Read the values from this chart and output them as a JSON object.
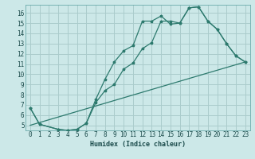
{
  "xlabel": "Humidex (Indice chaleur)",
  "background_color": "#cce8e8",
  "grid_color": "#aacccc",
  "line_color": "#2d7a6e",
  "xlim": [
    -0.5,
    23.5
  ],
  "ylim": [
    4.5,
    16.8
  ],
  "xticks": [
    0,
    1,
    2,
    3,
    4,
    5,
    6,
    7,
    8,
    9,
    10,
    11,
    12,
    13,
    14,
    15,
    16,
    17,
    18,
    19,
    20,
    21,
    22,
    23
  ],
  "yticks": [
    5,
    6,
    7,
    8,
    9,
    10,
    11,
    12,
    13,
    14,
    15,
    16
  ],
  "line1_x": [
    0,
    1,
    3,
    4,
    5,
    6,
    7,
    8,
    9,
    10,
    11,
    12,
    13,
    14,
    15,
    16,
    17,
    18,
    19,
    20,
    21,
    22,
    23
  ],
  "line1_y": [
    6.7,
    5.1,
    4.6,
    4.5,
    4.6,
    5.2,
    7.2,
    8.4,
    9.0,
    10.5,
    11.1,
    12.5,
    13.1,
    15.2,
    15.2,
    15.0,
    16.5,
    16.6,
    15.2,
    14.4,
    13.0,
    11.8,
    11.2
  ],
  "line2_x": [
    0,
    1,
    3,
    4,
    5,
    6,
    7,
    8,
    9,
    10,
    11,
    12,
    13,
    14,
    15,
    16,
    17,
    18,
    19,
    20,
    21,
    22,
    23
  ],
  "line2_y": [
    6.7,
    5.1,
    4.6,
    4.5,
    4.6,
    5.2,
    7.5,
    9.5,
    11.2,
    12.3,
    12.8,
    15.2,
    15.2,
    15.7,
    14.9,
    15.0,
    16.5,
    16.6,
    15.2,
    14.4,
    13.0,
    11.8,
    11.2
  ],
  "line3_x": [
    0,
    23
  ],
  "line3_y": [
    5.0,
    11.2
  ],
  "xlabel_fontsize": 6,
  "tick_fontsize": 5.5
}
